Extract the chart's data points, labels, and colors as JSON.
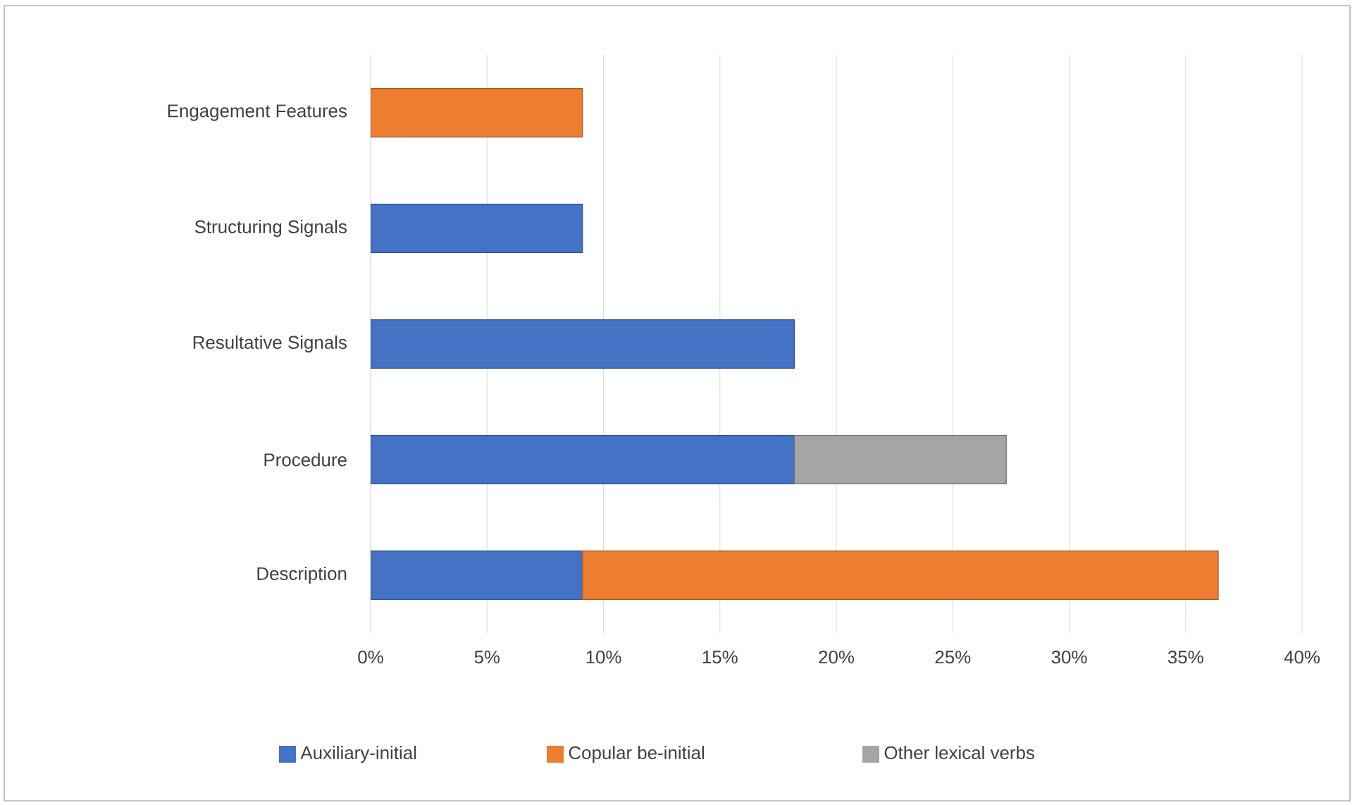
{
  "chart_data": {
    "type": "bar",
    "orientation": "horizontal",
    "stacked": true,
    "categories": [
      "Engagement Features",
      "Structuring Signals",
      "Resultative Signals",
      "Procedure",
      "Description"
    ],
    "series": [
      {
        "name": "Auxiliary-initial",
        "color": "#4472c4",
        "values": [
          null,
          9.1,
          18.2,
          18.2,
          9.1
        ]
      },
      {
        "name": "Copular be-initial",
        "color": "#ed7d31",
        "values": [
          9.1,
          null,
          null,
          null,
          27.3
        ]
      },
      {
        "name": "Other lexical verbs",
        "color": "#a5a5a5",
        "values": [
          null,
          null,
          null,
          9.1,
          null
        ]
      }
    ],
    "xlim": [
      0,
      40
    ],
    "xticks": [
      {
        "value": 0,
        "label": "0%"
      },
      {
        "value": 5,
        "label": "5%"
      },
      {
        "value": 10,
        "label": "10%"
      },
      {
        "value": 15,
        "label": "15%"
      },
      {
        "value": 20,
        "label": "20%"
      },
      {
        "value": 25,
        "label": "25%"
      },
      {
        "value": 30,
        "label": "30%"
      },
      {
        "value": 35,
        "label": "35%"
      },
      {
        "value": 40,
        "label": "40%"
      }
    ],
    "grid": "x",
    "legend": "bottom"
  }
}
